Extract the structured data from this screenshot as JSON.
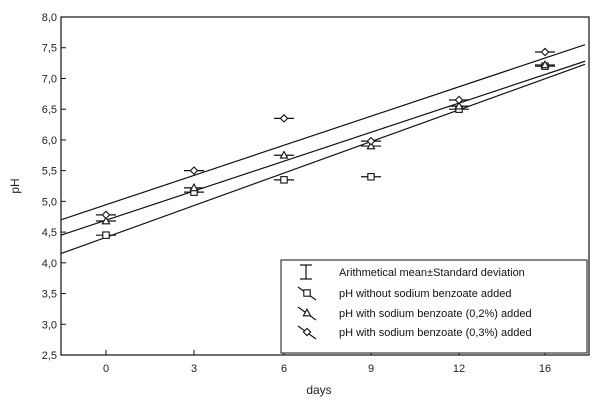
{
  "chart_data": {
    "type": "scatter",
    "xlabel": "days",
    "ylabel": "pH",
    "ylim": [
      2.5,
      8.0
    ],
    "yticks": [
      "2,5",
      "3,0",
      "3,5",
      "4,0",
      "4,5",
      "5,0",
      "5,5",
      "6,0",
      "6,5",
      "7,0",
      "7,5",
      "8,0"
    ],
    "categories": [
      "0",
      "3",
      "6",
      "9",
      "12",
      "16"
    ],
    "grid": false,
    "legend_position": "bottom-right",
    "legend_entries": [
      "Arithmetical mean±Standard deviation",
      "pH without sodium benzoate added",
      "pH with sodium benzoate (0,2%) added",
      "pH with sodium benzoate (0,3%) added"
    ],
    "series": [
      {
        "marker": "square",
        "values": [
          4.45,
          5.15,
          5.35,
          5.4,
          6.5,
          7.2
        ],
        "fit": [
          4.15,
          7.23
        ]
      },
      {
        "marker": "triangle",
        "values": [
          4.68,
          5.22,
          5.75,
          5.9,
          6.55,
          7.22
        ],
        "fit": [
          4.45,
          7.28
        ]
      },
      {
        "marker": "diamond",
        "values": [
          4.78,
          5.5,
          6.35,
          5.98,
          6.65,
          7.43
        ],
        "fit": [
          4.7,
          7.55
        ]
      }
    ]
  }
}
